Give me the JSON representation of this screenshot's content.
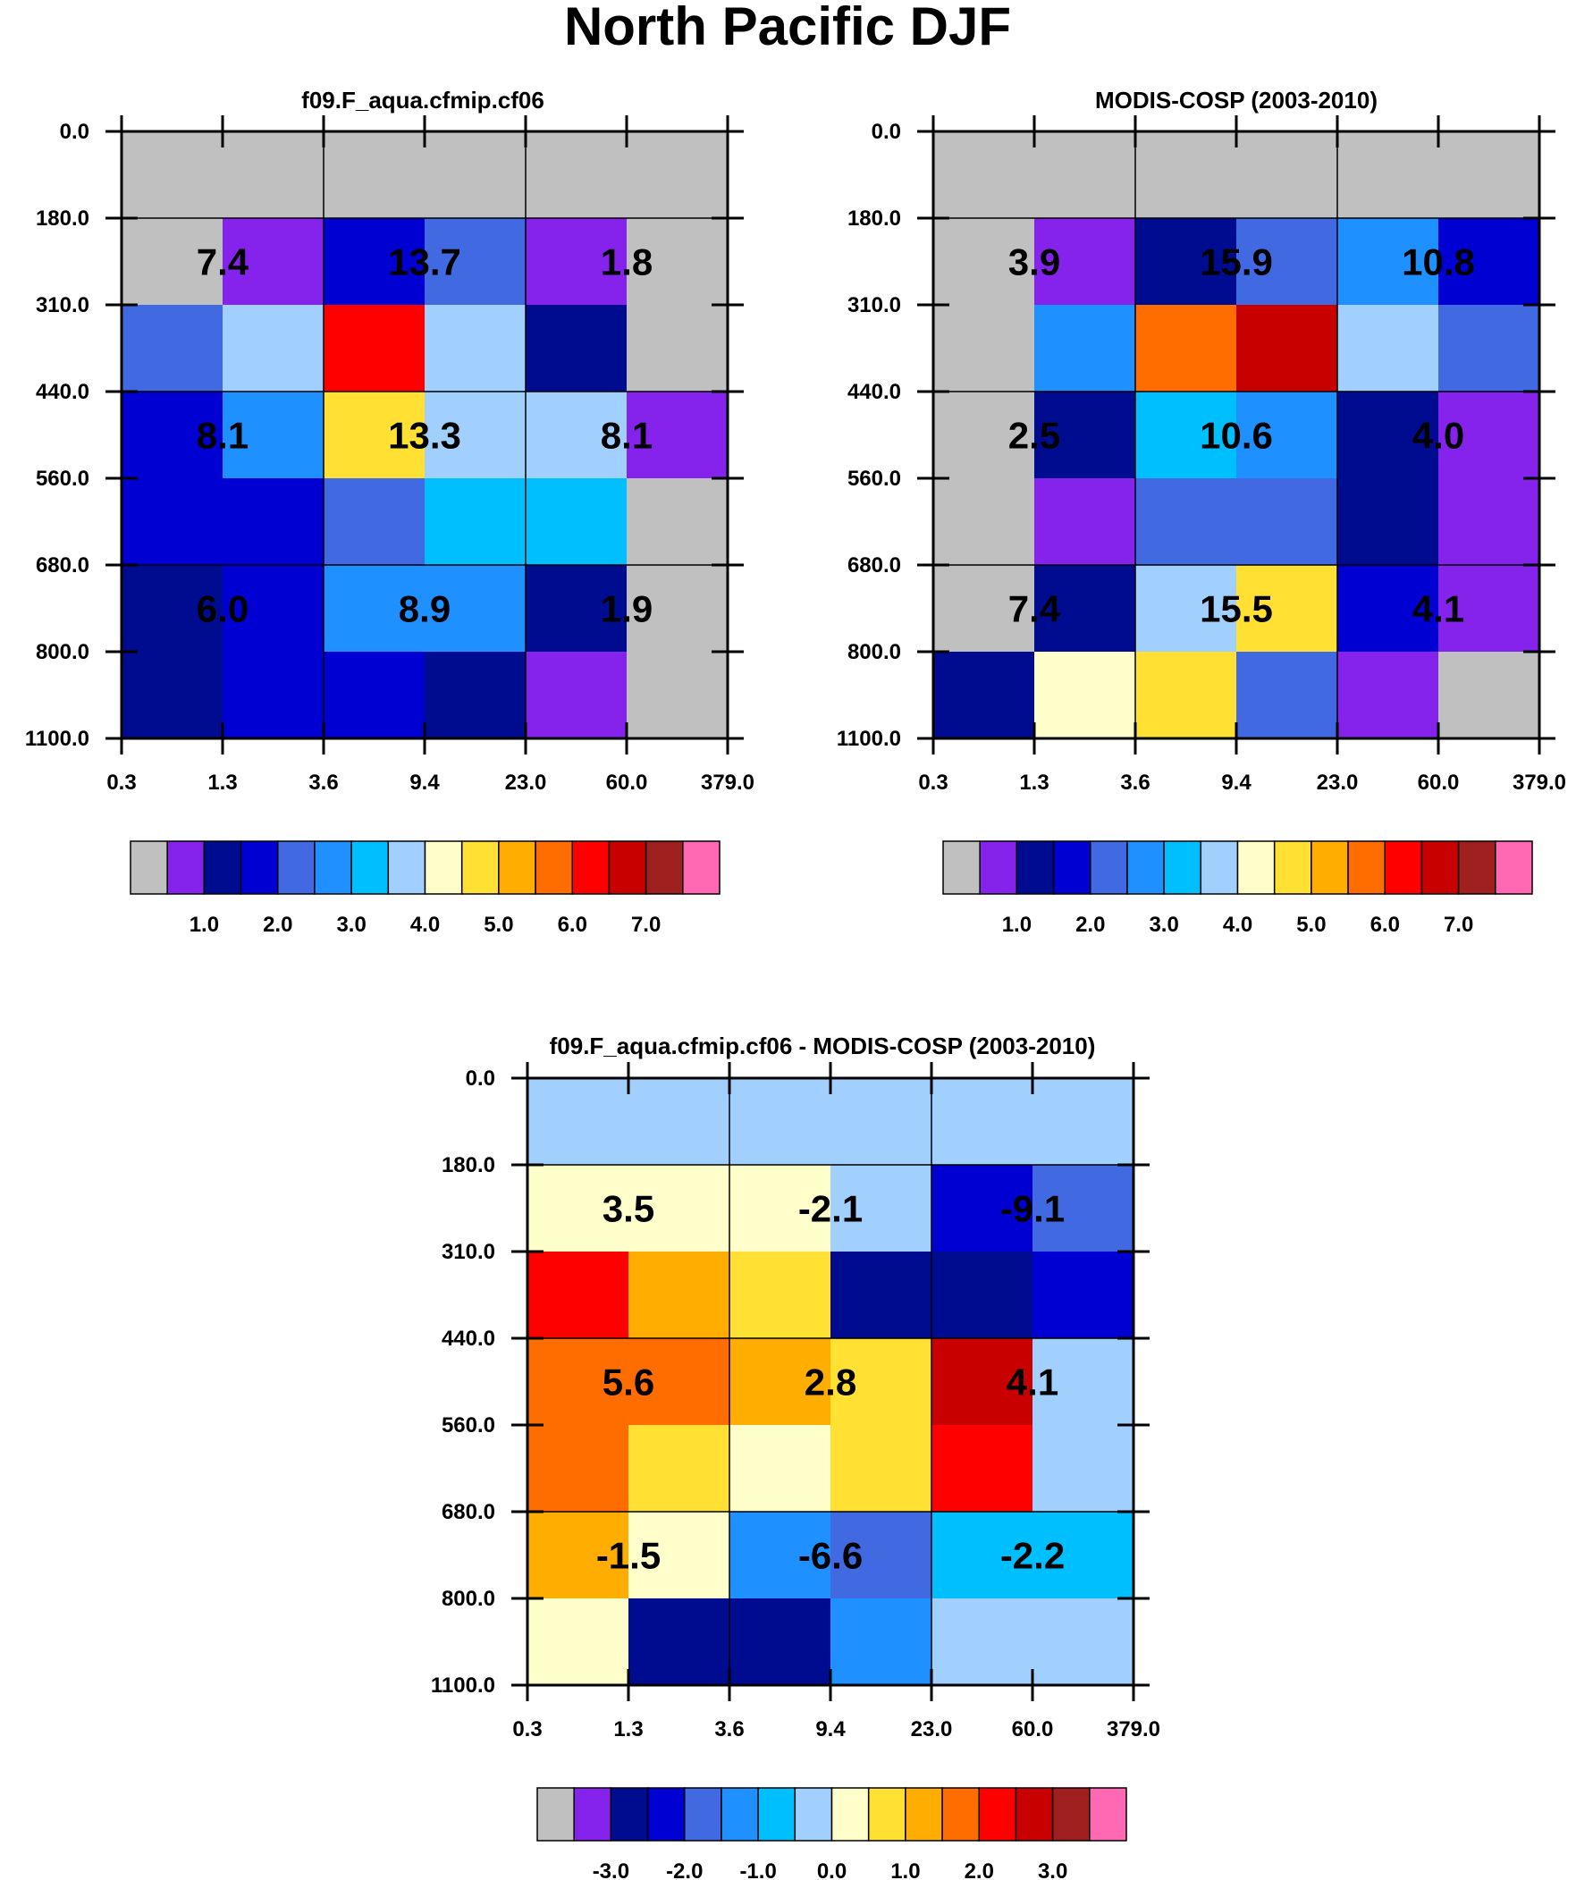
{
  "title": "North Pacific DJF",
  "colors": {
    "palette": [
      "#c0c0c0",
      "#8522ec",
      "#000c8f",
      "#0000d2",
      "#4169e1",
      "#1e90ff",
      "#00bfff",
      "#a1d0ff",
      "#ffffcc",
      "#ffe033",
      "#ffad00",
      "#ff6c00",
      "#ff0000",
      "#c90000",
      "#a02020",
      "#ff69b4"
    ],
    "frame": "#000000",
    "background": "#ffffff"
  },
  "chart_data": [
    {
      "id": "model",
      "type": "heatmap",
      "title": "f09.F_aqua.cfmip.cf06",
      "x_ticks": [
        "0.3",
        "1.3",
        "3.6",
        "9.4",
        "23.0",
        "60.0",
        "379.0"
      ],
      "y_ticks": [
        "0.0",
        "180.0",
        "310.0",
        "440.0",
        "560.0",
        "680.0",
        "800.0",
        "1100.0"
      ],
      "cells": [
        [
          0,
          0,
          0,
          0,
          0,
          0
        ],
        [
          0,
          1,
          3,
          4,
          1,
          0
        ],
        [
          4,
          7,
          12,
          7,
          2,
          0
        ],
        [
          3,
          5,
          9,
          7,
          7,
          1
        ],
        [
          3,
          3,
          4,
          6,
          6,
          0
        ],
        [
          2,
          3,
          5,
          5,
          2,
          0
        ],
        [
          2,
          3,
          3,
          2,
          1,
          0
        ]
      ],
      "annotations": [
        [
          "7.4",
          "13.7",
          "1.8"
        ],
        [
          "8.1",
          "13.3",
          "8.1"
        ],
        [
          "6.0",
          "8.9",
          "1.9"
        ]
      ],
      "colorbar": {
        "labels": [
          "1.0",
          "2.0",
          "3.0",
          "4.0",
          "5.0",
          "6.0",
          "7.0"
        ]
      }
    },
    {
      "id": "obs",
      "type": "heatmap",
      "title": "MODIS-COSP (2003-2010)",
      "x_ticks": [
        "0.3",
        "1.3",
        "3.6",
        "9.4",
        "23.0",
        "60.0",
        "379.0"
      ],
      "y_ticks": [
        "0.0",
        "180.0",
        "310.0",
        "440.0",
        "560.0",
        "680.0",
        "800.0",
        "1100.0"
      ],
      "cells": [
        [
          0,
          0,
          0,
          0,
          0,
          0
        ],
        [
          0,
          1,
          2,
          4,
          5,
          3
        ],
        [
          0,
          5,
          11,
          13,
          7,
          4
        ],
        [
          0,
          2,
          6,
          5,
          2,
          1
        ],
        [
          0,
          1,
          4,
          4,
          2,
          1
        ],
        [
          0,
          2,
          7,
          9,
          3,
          1
        ],
        [
          2,
          8,
          9,
          4,
          1,
          0
        ]
      ],
      "annotations": [
        [
          "3.9",
          "15.9",
          "10.8"
        ],
        [
          "2.5",
          "10.6",
          "4.0"
        ],
        [
          "7.4",
          "15.5",
          "4.1"
        ]
      ],
      "colorbar": {
        "labels": [
          "1.0",
          "2.0",
          "3.0",
          "4.0",
          "5.0",
          "6.0",
          "7.0"
        ]
      }
    },
    {
      "id": "diff",
      "type": "heatmap",
      "title": "f09.F_aqua.cfmip.cf06 - MODIS-COSP (2003-2010)",
      "x_ticks": [
        "0.3",
        "1.3",
        "3.6",
        "9.4",
        "23.0",
        "60.0",
        "379.0"
      ],
      "y_ticks": [
        "0.0",
        "180.0",
        "310.0",
        "440.0",
        "560.0",
        "680.0",
        "800.0",
        "1100.0"
      ],
      "cells": [
        [
          7,
          7,
          7,
          7,
          7,
          7
        ],
        [
          8,
          8,
          8,
          7,
          3,
          4
        ],
        [
          12,
          10,
          9,
          2,
          2,
          3
        ],
        [
          11,
          11,
          10,
          9,
          13,
          7
        ],
        [
          11,
          9,
          8,
          9,
          12,
          7
        ],
        [
          10,
          8,
          5,
          4,
          6,
          6
        ],
        [
          8,
          2,
          2,
          5,
          7,
          7
        ]
      ],
      "annotations": [
        [
          "3.5",
          "-2.1",
          "-9.1"
        ],
        [
          "5.6",
          "2.8",
          "4.1"
        ],
        [
          "-1.5",
          "-6.6",
          "-2.2"
        ]
      ],
      "colorbar": {
        "labels": [
          "-3.0",
          "-2.0",
          "-1.0",
          "0.0",
          "1.0",
          "2.0",
          "3.0"
        ]
      }
    }
  ]
}
